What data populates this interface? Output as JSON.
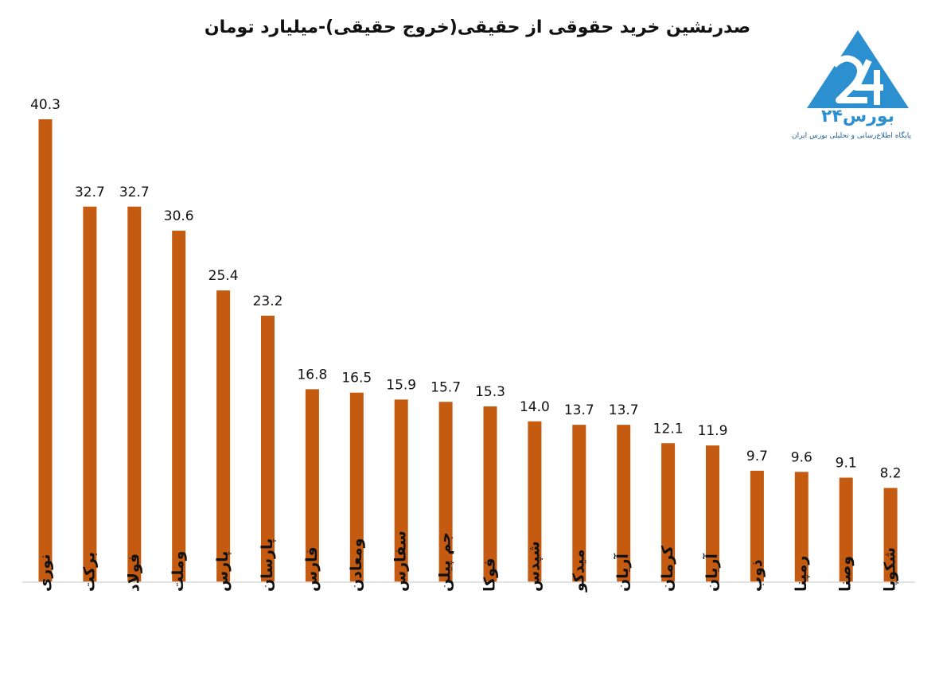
{
  "chart_data": {
    "type": "bar",
    "title": "صدرنشین خرید حقوقی از حقیقی(خروج حقیقی)-میلیارد تومان",
    "categories": [
      "نوری",
      "برکت",
      "فولاد",
      "وملت",
      "پارس",
      "پارسان",
      "فارس",
      "ومعادن",
      "سفارس",
      "جم پیلن",
      "فوکا",
      "شپدس",
      "میدکو",
      "آریان",
      "کرمان",
      "آریان",
      "ذوب",
      "رمپنا",
      "وصنا",
      "شکوپا"
    ],
    "values": [
      40.3,
      32.7,
      32.7,
      30.6,
      25.4,
      23.2,
      16.8,
      16.5,
      15.9,
      15.7,
      15.3,
      14.0,
      13.7,
      13.7,
      12.1,
      11.9,
      9.7,
      9.6,
      9.1,
      8.2
    ],
    "value_labels": [
      "40.3",
      "32.7",
      "32.7",
      "30.6",
      "25.4",
      "23.2",
      "16.8",
      "16.5",
      "15.9",
      "15.7",
      "15.3",
      "14.0",
      "13.7",
      "13.7",
      "12.1",
      "11.9",
      "9.7",
      "9.6",
      "9.1",
      "8.2"
    ],
    "xlabel": "",
    "ylabel": "",
    "ylim": [
      0,
      40.3
    ],
    "grid": false,
    "bar_color": "#c55a11"
  },
  "logo": {
    "name": "boors24-logo",
    "text": "بورس۲۴",
    "tagline": "پایگاه اطلاع‌رسانی و تحلیلی بورس ایران",
    "color": "#2b8fd0"
  }
}
